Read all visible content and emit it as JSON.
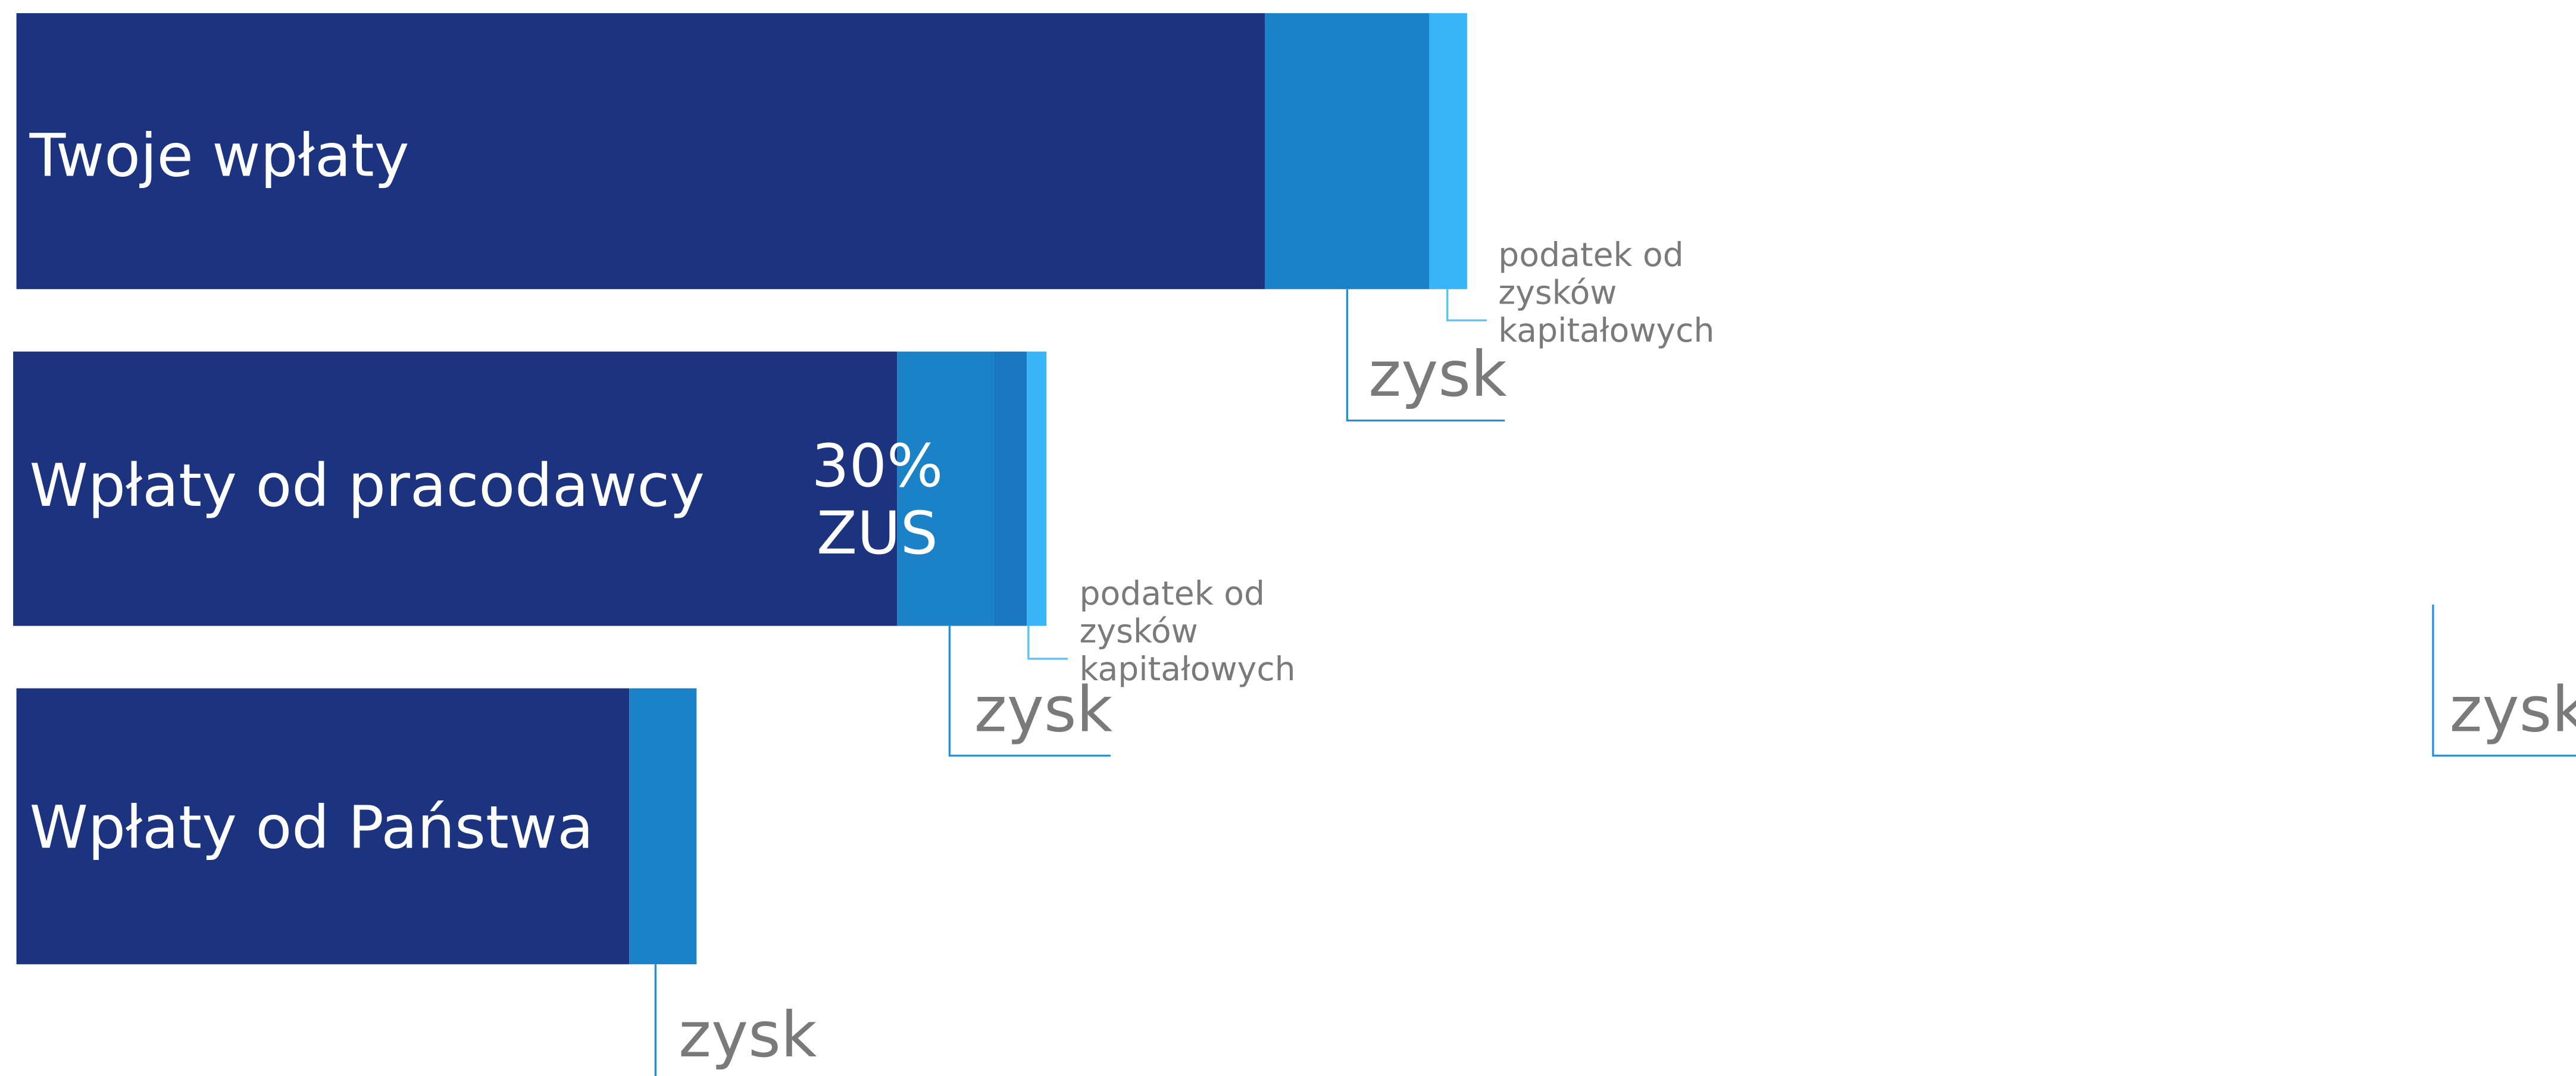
{
  "bars": [
    {
      "label": "Twoje wpłaty",
      "gain_label": "zysk",
      "tax_label": [
        "podatek od",
        "zysków",
        "kapitałowych"
      ]
    },
    {
      "label": "Wpłaty od pracodawcy",
      "inner_label": [
        "30%",
        "ZUS"
      ],
      "gain_label": "zysk",
      "tax_label": [
        "podatek od",
        "zysków",
        "kapitałowych"
      ]
    },
    {
      "label": "Wpłaty od Państwa",
      "gain_label": "zysk"
    }
  ],
  "extra_label": "zysk"
}
